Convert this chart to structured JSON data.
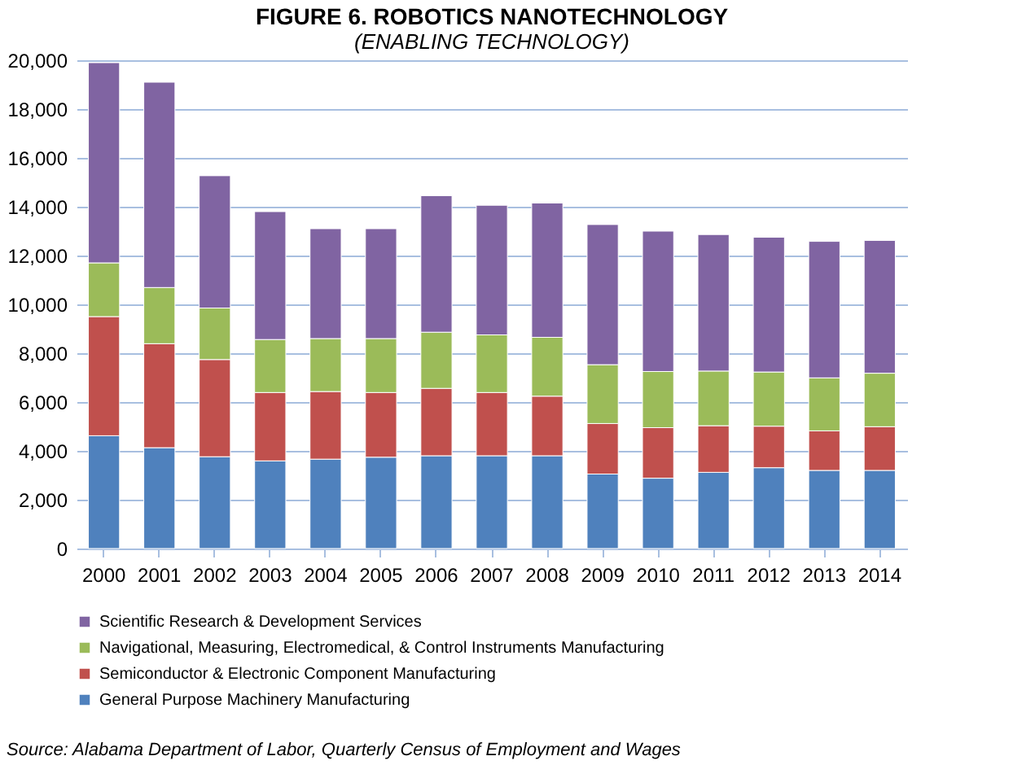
{
  "chart_data": {
    "type": "bar",
    "stacked": true,
    "title": "FIGURE 6. ROBOTICS NANOTECHNOLOGY",
    "subtitle": "(ENABLING TECHNOLOGY)",
    "categories": [
      "2000",
      "2001",
      "2002",
      "2003",
      "2004",
      "2005",
      "2006",
      "2007",
      "2008",
      "2009",
      "2010",
      "2011",
      "2012",
      "2013",
      "2014"
    ],
    "series": [
      {
        "name": "General Purpose Machinery Manufacturing",
        "color": "#4f81bd",
        "values": [
          4620,
          4130,
          3760,
          3590,
          3660,
          3740,
          3800,
          3800,
          3800,
          3050,
          2880,
          3120,
          3310,
          3200,
          3200
        ]
      },
      {
        "name": "Semiconductor & Electronic Component Manufacturing",
        "color": "#c0504d",
        "values": [
          4880,
          4260,
          3980,
          2800,
          2770,
          2650,
          2760,
          2590,
          2440,
          2070,
          2070,
          1910,
          1700,
          1620,
          1790
        ]
      },
      {
        "name": "Navigational, Measuring, Electromedical, & Control Instruments Manufacturing",
        "color": "#9bbb59",
        "values": [
          2200,
          2300,
          2110,
          2170,
          2170,
          2210,
          2300,
          2360,
          2410,
          2410,
          2300,
          2240,
          2220,
          2170,
          2190
        ]
      },
      {
        "name": "Scientific Research & Development Services",
        "color": "#8064a2",
        "values": [
          8200,
          8410,
          5420,
          5240,
          4500,
          4500,
          5590,
          5310,
          5500,
          5740,
          5750,
          5590,
          5520,
          5590,
          5440
        ]
      }
    ],
    "ylim": [
      0,
      20000
    ],
    "yticks": [
      0,
      {
        "value": 2000,
        "label": "2,000"
      },
      {
        "value": 4000,
        "label": "4,000"
      },
      {
        "value": 6000,
        "label": "6,000"
      },
      {
        "value": 8000,
        "label": "8,000"
      },
      {
        "value": 10000,
        "label": "10,000"
      },
      {
        "value": 12000,
        "label": "12,000"
      },
      {
        "value": 14000,
        "label": "14,000"
      },
      {
        "value": 16000,
        "label": "16,000"
      },
      {
        "value": 18000,
        "label": "18,000"
      },
      {
        "value": 20000,
        "label": "20,000"
      }
    ],
    "grid": "y",
    "legend": "bottom",
    "annotations": [
      "Source: Alabama Department of Labor, Quarterly Census of Employment and Wages"
    ]
  }
}
